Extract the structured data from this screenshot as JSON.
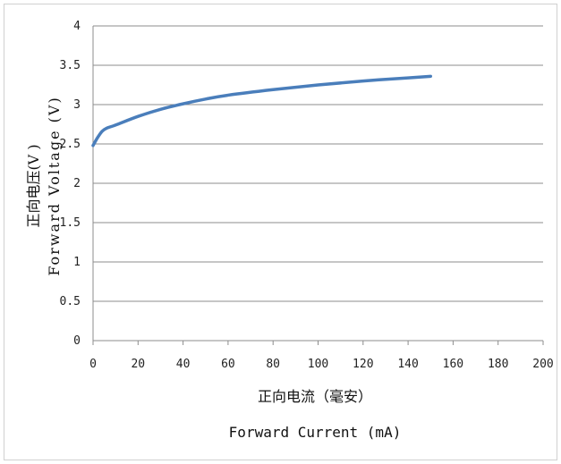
{
  "chart_data": {
    "type": "line",
    "title": "",
    "xlabel_cn": "正向电流（毫安）",
    "xlabel_en": "Forward Current (mA)",
    "ylabel_cn": "正向电压(V )",
    "ylabel_en": "Forward Voltage (V)",
    "xlim": [
      0,
      200
    ],
    "ylim": [
      0,
      4
    ],
    "xticks": [
      0,
      20,
      40,
      60,
      80,
      100,
      120,
      140,
      160,
      180,
      200
    ],
    "yticks": [
      0,
      0.5,
      1,
      1.5,
      2,
      2.5,
      3,
      3.5,
      4
    ],
    "grid": "horizontal",
    "legend": "none",
    "series": [
      {
        "color": "#4a7ebb",
        "x": [
          0,
          2,
          4,
          6,
          10,
          20,
          30,
          40,
          50,
          60,
          80,
          100,
          120,
          140,
          150
        ],
        "y": [
          2.48,
          2.58,
          2.66,
          2.7,
          2.74,
          2.85,
          2.94,
          3.01,
          3.07,
          3.12,
          3.19,
          3.25,
          3.3,
          3.34,
          3.36
        ]
      }
    ]
  }
}
